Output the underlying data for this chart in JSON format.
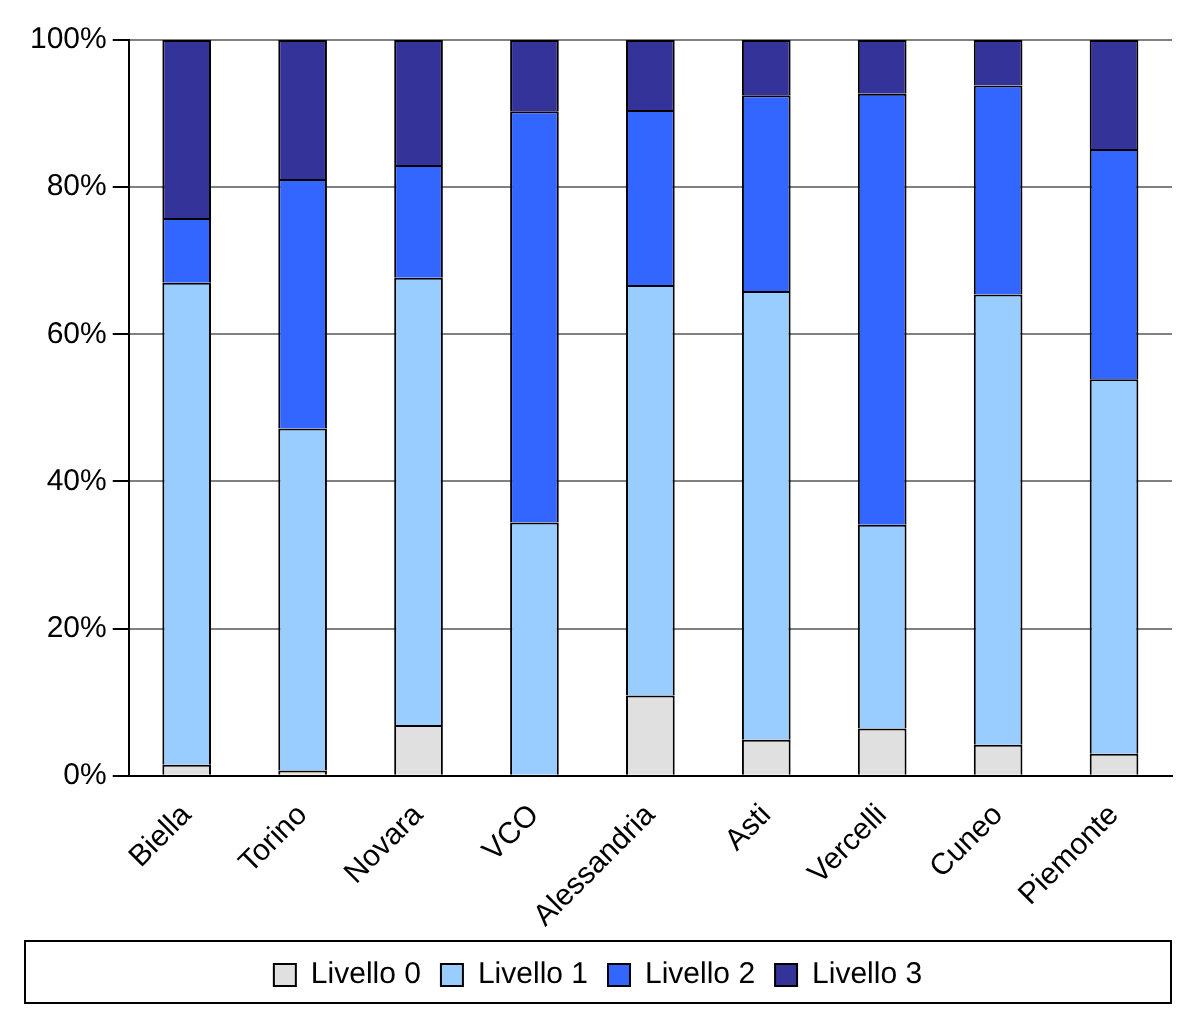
{
  "chart_data": {
    "type": "bar",
    "stacked": true,
    "categories": [
      "Biella",
      "Torino",
      "Novara",
      "VCO",
      "Alessandria",
      "Asti",
      "Vercelli",
      "Cuneo",
      "Piemonte"
    ],
    "series": [
      {
        "name": "Livello 0",
        "color": "#e0e0e0",
        "values": [
          1.5,
          0.7,
          6.9,
          0,
          10.9,
          4.9,
          6.4,
          4.2,
          3.0
        ]
      },
      {
        "name": "Livello 1",
        "color": "#99ccff",
        "values": [
          65.5,
          46.5,
          60.8,
          34.4,
          55.8,
          61.0,
          27.7,
          61.2,
          50.9
        ]
      },
      {
        "name": "Livello 2",
        "color": "#3366ff",
        "values": [
          8.8,
          33.9,
          15.3,
          55.9,
          23.8,
          26.6,
          58.6,
          28.4,
          31.3
        ]
      },
      {
        "name": "Livello 3",
        "color": "#333399",
        "values": [
          24.2,
          18.9,
          17.0,
          9.7,
          9.5,
          7.5,
          7.3,
          6.2,
          14.8
        ]
      }
    ],
    "ylim": [
      0,
      100
    ],
    "yticks": [
      {
        "value": 0,
        "label": "0%"
      },
      {
        "value": 20,
        "label": "20%"
      },
      {
        "value": 40,
        "label": "40%"
      },
      {
        "value": 60,
        "label": "60%"
      },
      {
        "value": 80,
        "label": "80%"
      },
      {
        "value": 100,
        "label": "100%"
      }
    ],
    "grid": "y",
    "legend": "bottom"
  }
}
